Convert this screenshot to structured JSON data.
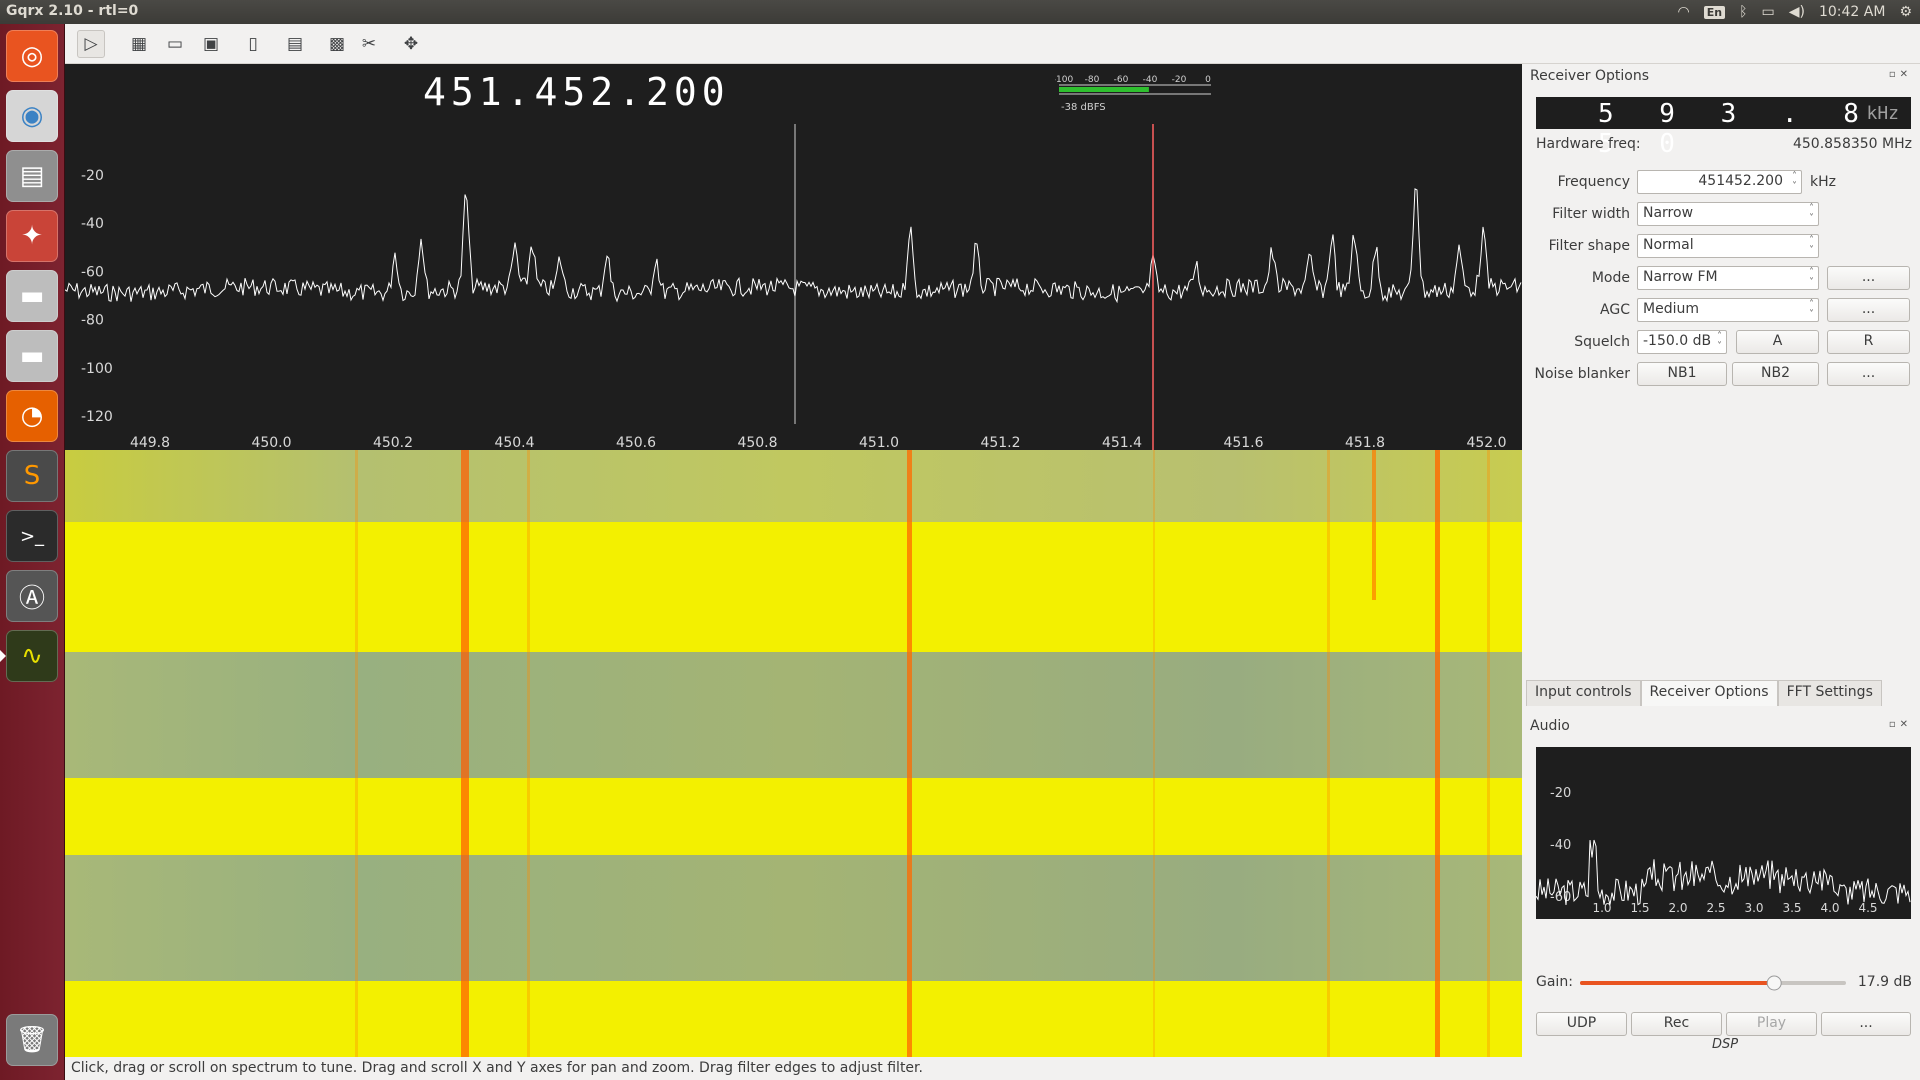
{
  "app": {
    "window_title": "Gqrx 2.10 - rtl=0",
    "tray": {
      "keyboard_layout": "En",
      "time": "10:42 AM"
    }
  },
  "launcher": {
    "items": [
      {
        "name": "ubuntu-home",
        "icon": "ubuntu-logo-icon",
        "color": "#e95420"
      },
      {
        "name": "chrome",
        "icon": "chrome-icon",
        "color": "#3b82c4"
      },
      {
        "name": "files",
        "icon": "file-cabinet-icon",
        "color": "#9a9a9a"
      },
      {
        "name": "system-settings",
        "icon": "settings-tools-icon",
        "color": "#d0463a"
      },
      {
        "name": "drive-1",
        "icon": "hard-drive-icon",
        "color": "#bfbfbf"
      },
      {
        "name": "drive-2",
        "icon": "hard-drive-icon",
        "color": "#bfbfbf"
      },
      {
        "name": "firefox",
        "icon": "firefox-icon",
        "color": "#e66000"
      },
      {
        "name": "sublime-text",
        "icon": "sublime-icon",
        "color": "#4a4a4a"
      },
      {
        "name": "terminal",
        "icon": "terminal-icon",
        "color": "#2b2b2b"
      },
      {
        "name": "software-updater",
        "icon": "updater-icon",
        "color": "#4a4a4a"
      },
      {
        "name": "gqrx",
        "icon": "signal-monitor-icon",
        "color": "#2f3a1a"
      },
      {
        "name": "trash",
        "icon": "trash-icon",
        "color": "#8a8a8a"
      }
    ]
  },
  "toolbar": {
    "buttons": [
      {
        "name": "start-dsp",
        "icon": "play-icon"
      },
      {
        "name": "io-devices",
        "icon": "hardware-icon"
      },
      {
        "name": "load-settings",
        "icon": "folder-icon"
      },
      {
        "name": "save-settings",
        "icon": "floppy-icon"
      },
      {
        "name": "bookmarks",
        "icon": "bookmark-icon"
      },
      {
        "name": "toggle-fft",
        "icon": "fft-panel-icon"
      },
      {
        "name": "remote-control",
        "icon": "remote-icon"
      },
      {
        "name": "configure",
        "icon": "tools-icon"
      },
      {
        "name": "fullscreen",
        "icon": "arrows-icon"
      }
    ]
  },
  "spectrum": {
    "center_readout": "451.452.200",
    "smeter": {
      "scale": [
        "-100",
        "-80",
        "-60",
        "-40",
        "-20",
        "0"
      ],
      "level_label": "-38 dBFS",
      "level_dbfs": -38
    },
    "y_axis_labels": [
      "-20",
      "-40",
      "-60",
      "-80",
      "-100",
      "-120"
    ],
    "x_axis_labels": [
      "449.8",
      "450.0",
      "450.2",
      "450.4",
      "450.6",
      "450.8",
      "451.0",
      "451.2",
      "451.4",
      "451.6",
      "451.8",
      "452.0"
    ],
    "trace_color": "#ffffff",
    "tuned_marker_color": "#ff6060"
  },
  "waterfall": {
    "colors": {
      "strong": "#f3f000",
      "weak": "#a8b868",
      "signal": "#ff5a00"
    }
  },
  "status_bar": {
    "text": "Click, drag or scroll on spectrum to tune. Drag and scroll X and Y axes for pan and zoom. Drag filter edges to adjust filter."
  },
  "receiver_options": {
    "title": "Receiver Options",
    "offset_lcd": {
      "digits": "5 9 3 . 8 5 0",
      "unit": "kHz"
    },
    "hardware_freq_label": "Hardware freq:",
    "hardware_freq_value": "450.858350 MHz",
    "frequency": {
      "label": "Frequency",
      "value": "451452.200",
      "unit": "kHz"
    },
    "filter_width": {
      "label": "Filter width",
      "value": "Narrow"
    },
    "filter_shape": {
      "label": "Filter shape",
      "value": "Normal"
    },
    "mode": {
      "label": "Mode",
      "value": "Narrow FM",
      "options_button": "..."
    },
    "agc": {
      "label": "AGC",
      "value": "Medium",
      "options_button": "..."
    },
    "squelch": {
      "label": "Squelch",
      "value": "-150.0 dB",
      "auto_button": "A",
      "reset_button": "R"
    },
    "noise_blanker": {
      "label": "Noise blanker",
      "nb1": "NB1",
      "nb2": "NB2",
      "options_button": "..."
    }
  },
  "dock_tabs": [
    "Input controls",
    "Receiver Options",
    "FFT Settings"
  ],
  "audio": {
    "title": "Audio",
    "y_axis_labels": [
      "-20",
      "-40",
      "-60"
    ],
    "x_axis_labels": [
      "1.0",
      "1.5",
      "2.0",
      "2.5",
      "3.0",
      "3.5",
      "4.0",
      "4.5"
    ],
    "gain_label": "Gain:",
    "gain_value": "17.9 dB",
    "gain_fraction": 0.73,
    "buttons": {
      "udp": "UDP",
      "rec": "Rec",
      "play": "Play",
      "more": "..."
    },
    "dsp_label": "DSP"
  }
}
